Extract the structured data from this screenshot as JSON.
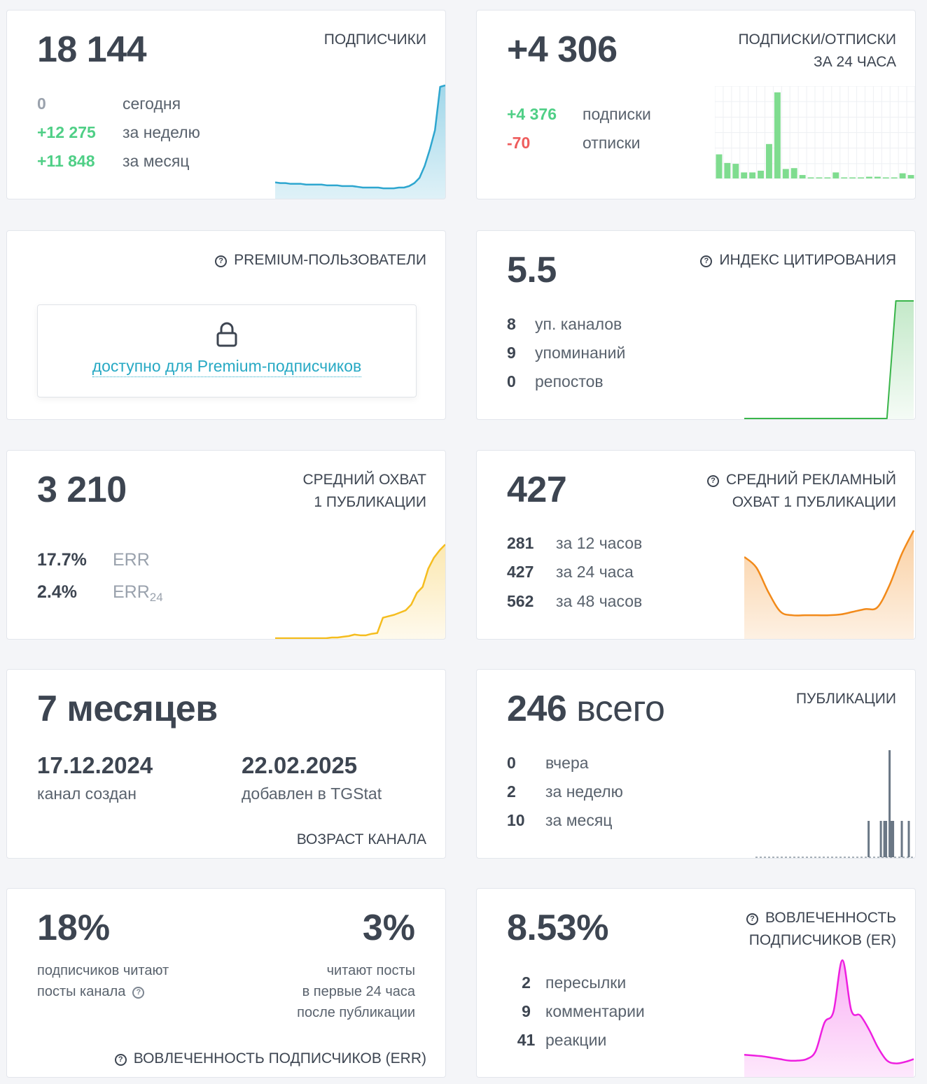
{
  "subscribers": {
    "value": "18 144",
    "title": "ПОДПИСЧИКИ",
    "rows": [
      {
        "value": "0",
        "label": "сегодня"
      },
      {
        "value": "+12 275",
        "label": "за неделю"
      },
      {
        "value": "+11 848",
        "label": "за месяц"
      }
    ]
  },
  "subs_24h": {
    "value": "+4 306",
    "title_line1": "ПОДПИСКИ/ОТПИСКИ",
    "title_line2": "ЗА 24 ЧАСА",
    "rows": [
      {
        "value": "+4 376",
        "label": "подписки"
      },
      {
        "value": "-70",
        "label": "отписки"
      }
    ]
  },
  "premium": {
    "title": "PREMIUM-ПОЛЬЗОВАТЕЛИ",
    "link": "доступно для Premium-подписчиков"
  },
  "citation": {
    "value": "5.5",
    "title": "ИНДЕКС ЦИТИРОВАНИЯ",
    "rows": [
      {
        "value": "8",
        "label": "уп. каналов"
      },
      {
        "value": "9",
        "label": "упоминаний"
      },
      {
        "value": "0",
        "label": "репостов"
      }
    ]
  },
  "reach": {
    "value": "3 210",
    "title_line1": "СРЕДНИЙ ОХВАТ",
    "title_line2": "1 ПУБЛИКАЦИИ",
    "rows": [
      {
        "value": "17.7%",
        "label": "ERR"
      },
      {
        "value": "2.4%",
        "label": "ERR",
        "sub": "24"
      }
    ]
  },
  "ad_reach": {
    "value": "427",
    "title_line1": "СРЕДНИЙ РЕКЛАМНЫЙ",
    "title_line2": "ОХВАТ 1 ПУБЛИКАЦИИ",
    "rows": [
      {
        "value": "281",
        "label": "за 12 часов"
      },
      {
        "value": "427",
        "label": "за 24 часа"
      },
      {
        "value": "562",
        "label": "за 48 часов"
      }
    ]
  },
  "age": {
    "value": "7 месяцев",
    "created_date": "17.12.2024",
    "created_label": "канал создан",
    "added_date": "22.02.2025",
    "added_label": "добавлен в TGStat",
    "title": "ВОЗРАСТ КАНАЛА"
  },
  "posts": {
    "value": "246",
    "value_suffix": "всего",
    "title": "ПУБЛИКАЦИИ",
    "rows": [
      {
        "value": "0",
        "label": "вчера"
      },
      {
        "value": "2",
        "label": "за неделю"
      },
      {
        "value": "10",
        "label": "за месяц"
      }
    ]
  },
  "err": {
    "left_value": "18%",
    "left_line1": "подписчиков читают",
    "left_line2": "посты канала",
    "right_value": "3%",
    "right_line1": "читают посты",
    "right_line2": "в первые 24 часа",
    "right_line3": "после публикации",
    "title": "ВОВЛЕЧЕННОСТЬ ПОДПИСЧИКОВ (ERR)"
  },
  "er": {
    "value": "8.53%",
    "title_line1": "ВОВЛЕЧЕННОСТЬ",
    "title_line2": "ПОДПИСЧИКОВ (ER)",
    "rows": [
      {
        "value": "2",
        "label": "пересылки"
      },
      {
        "value": "9",
        "label": "комментарии"
      },
      {
        "value": "41",
        "label": "реакции"
      }
    ]
  },
  "colors": {
    "blue": "#2ea6cf",
    "green": "#4fcf86",
    "bar_green": "#7fdc8f",
    "line_green": "#39b54a",
    "yellow": "#f5bd1f",
    "orange": "#f28a1a",
    "slate": "#6a7785",
    "magenta": "#ee1fe0",
    "red": "#ee5c5c"
  },
  "chart_data": [
    {
      "type": "area",
      "values": [
        22,
        21,
        21,
        20,
        20,
        20,
        19,
        19,
        19,
        19,
        18,
        18,
        18,
        17,
        17,
        17,
        16,
        15,
        15,
        15,
        15,
        14,
        14,
        14,
        15,
        15,
        17,
        21,
        28,
        44,
        66,
        92,
        150,
        152
      ]
    },
    {
      "type": "bar",
      "values": [
        28,
        18,
        17,
        7,
        7,
        9,
        40,
        100,
        11,
        12,
        4,
        1,
        1,
        1,
        7,
        1,
        1,
        1,
        2,
        2,
        1,
        1,
        6,
        4
      ]
    },
    {
      "type": "area",
      "values": [
        0,
        0,
        0,
        0,
        0,
        0,
        0,
        0,
        0,
        0,
        0,
        0,
        0,
        0,
        0,
        0,
        0,
        100,
        100,
        100
      ]
    },
    {
      "type": "area",
      "values": [
        0,
        0,
        0,
        0,
        0,
        0,
        0,
        0,
        0,
        0,
        1,
        1,
        2,
        3,
        5,
        4,
        4,
        6,
        7,
        28,
        30,
        32,
        35,
        38,
        46,
        62,
        70,
        95,
        110,
        120,
        128
      ]
    },
    {
      "type": "area",
      "values": [
        92,
        80,
        52,
        30,
        26,
        26,
        26,
        26,
        27,
        30,
        33,
        35,
        60,
        95,
        122
      ]
    },
    {
      "type": "bar",
      "values": [
        0,
        0,
        0,
        0,
        0,
        0,
        0,
        0,
        0,
        0,
        0,
        0,
        0,
        0,
        0,
        0,
        0,
        0,
        0,
        0,
        0,
        0,
        0,
        0,
        0,
        0,
        0,
        0,
        0,
        0,
        0,
        0,
        0,
        0,
        0,
        0,
        0,
        0,
        0,
        0,
        0,
        0,
        0,
        0,
        0,
        0,
        0,
        0,
        0,
        0,
        0,
        0,
        0,
        0,
        0,
        0,
        0,
        0,
        0,
        0,
        0,
        0,
        0,
        0,
        1,
        0,
        0,
        0,
        0,
        0,
        0,
        1,
        0,
        1,
        1,
        0,
        3,
        1,
        1,
        0,
        0,
        0,
        0,
        1,
        0,
        0,
        0,
        1,
        0,
        0
      ]
    },
    {
      "type": "area",
      "values": [
        30,
        29,
        28,
        26,
        24,
        22,
        22,
        24,
        35,
        75,
        90,
        162,
        92,
        85,
        65,
        40,
        22,
        18,
        20,
        24
      ]
    }
  ]
}
